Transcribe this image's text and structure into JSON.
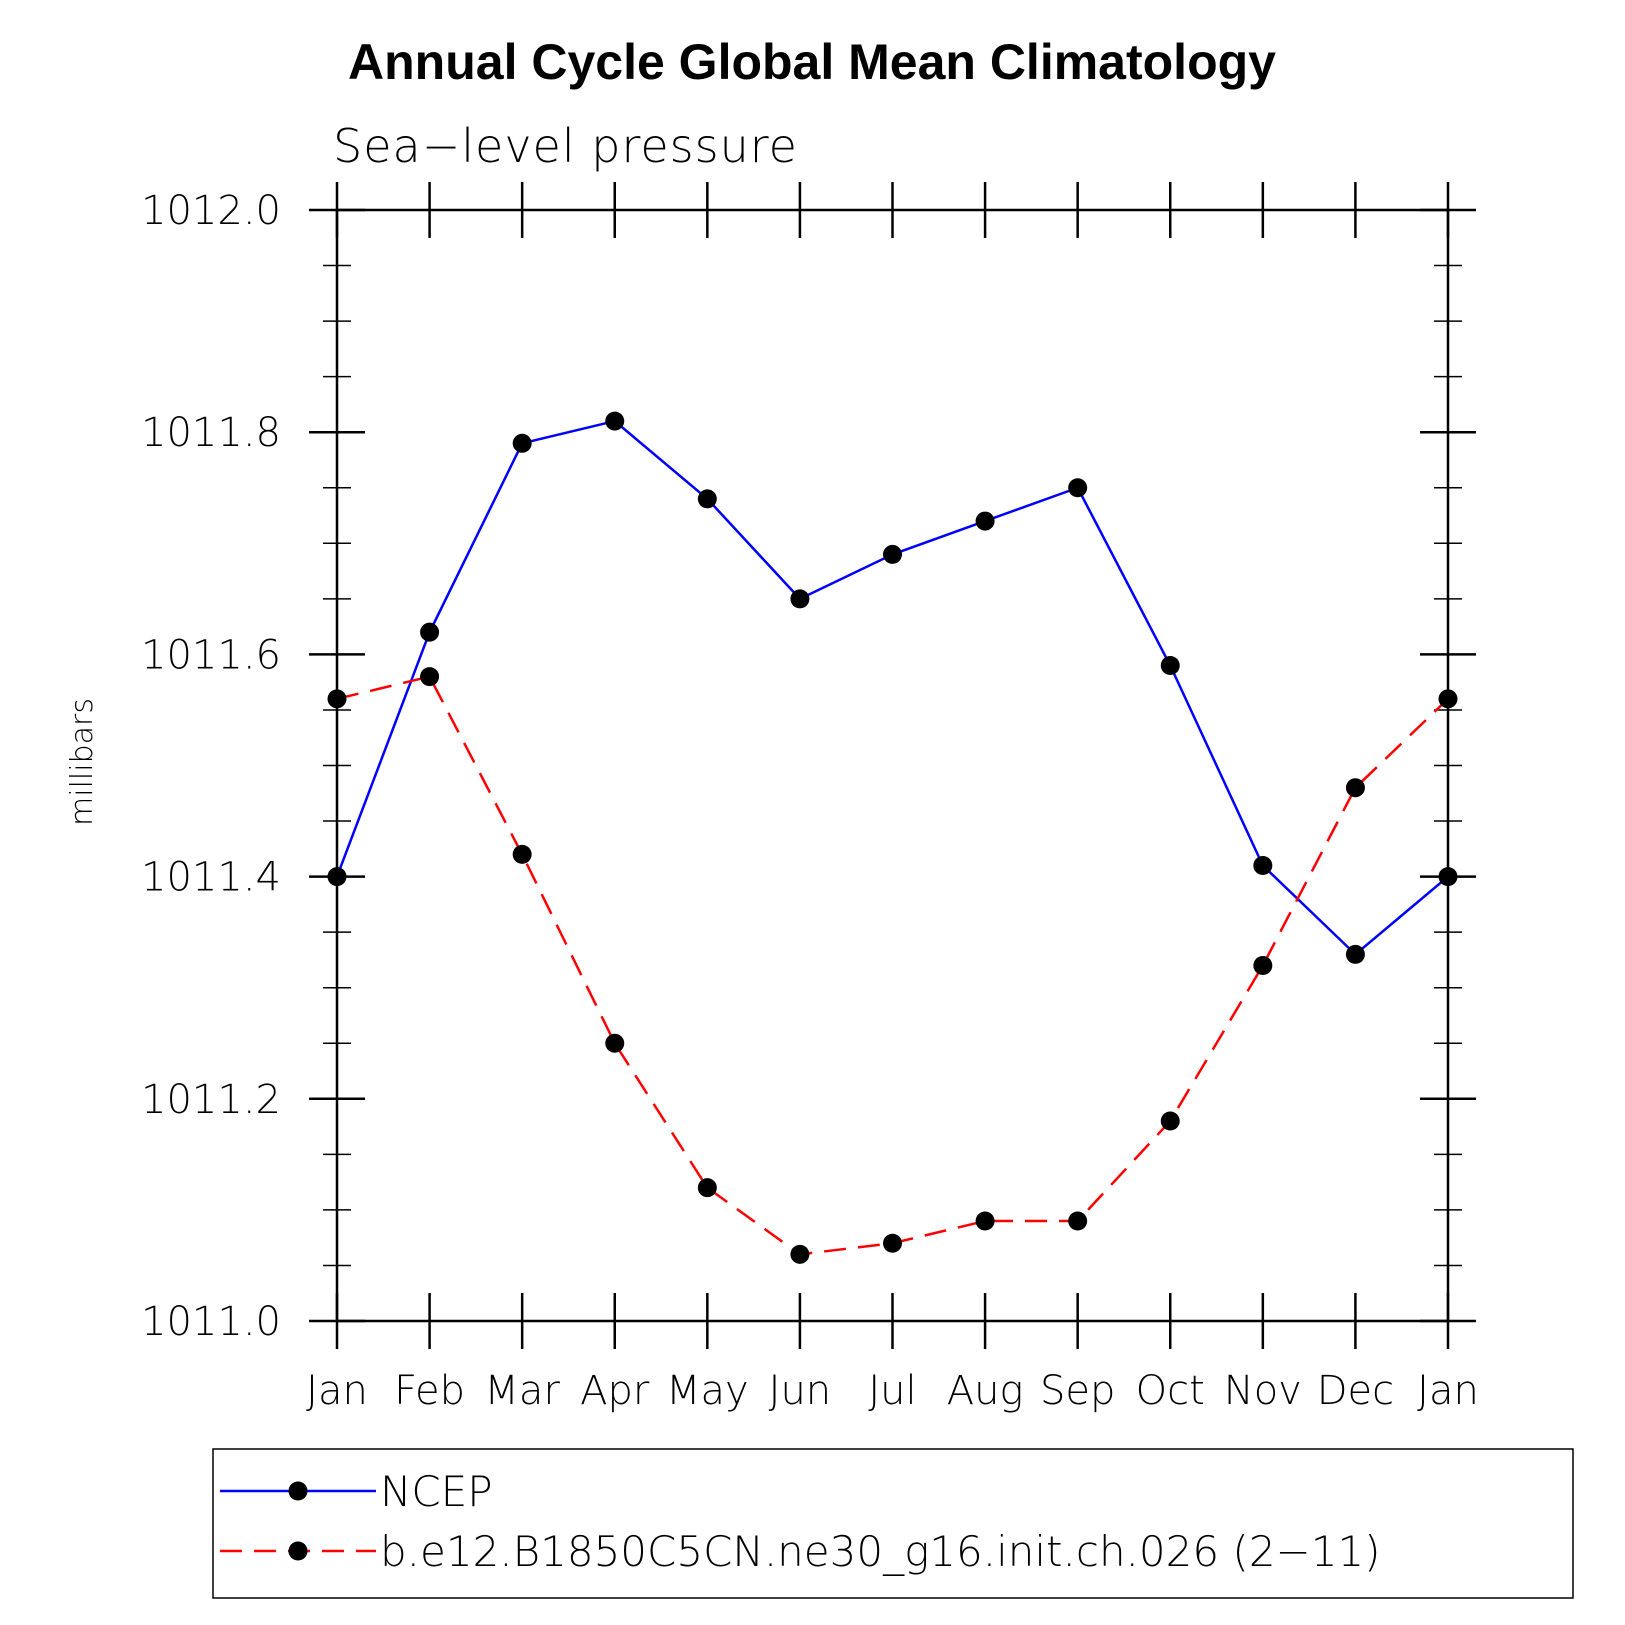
{
  "chart_data": {
    "type": "line",
    "title": "Annual Cycle Global Mean Climatology",
    "subtitle": "Sea−level pressure",
    "ylabel": "millibars",
    "xlabel": "",
    "ylim": [
      1011.0,
      1012.0
    ],
    "y_ticks": [
      "1011.0",
      "1011.2",
      "1011.4",
      "1011.6",
      "1011.8",
      "1012.0"
    ],
    "y_tick_values": [
      1011.0,
      1011.2,
      1011.4,
      1011.6,
      1011.8,
      1012.0
    ],
    "y_minor_step": 0.05,
    "categories": [
      "Jan",
      "Feb",
      "Mar",
      "Apr",
      "May",
      "Jun",
      "Jul",
      "Aug",
      "Sep",
      "Oct",
      "Nov",
      "Dec",
      "Jan"
    ],
    "grid": false,
    "legend_position": "bottom",
    "series": [
      {
        "name": "NCEP",
        "color": "#0000ff",
        "dashed": false,
        "marker": "filled-circle",
        "values": [
          1011.4,
          1011.62,
          1011.79,
          1011.81,
          1011.74,
          1011.65,
          1011.69,
          1011.72,
          1011.75,
          1011.59,
          1011.41,
          1011.33,
          1011.4
        ]
      },
      {
        "name": "b.e12.B1850C5CN.ne30_g16.init.ch.026 (2−11)",
        "color": "#ff0000",
        "dashed": true,
        "marker": "filled-circle",
        "values": [
          1011.56,
          1011.58,
          1011.42,
          1011.25,
          1011.12,
          1011.06,
          1011.07,
          1011.09,
          1011.09,
          1011.18,
          1011.32,
          1011.48,
          1011.56
        ]
      }
    ]
  }
}
